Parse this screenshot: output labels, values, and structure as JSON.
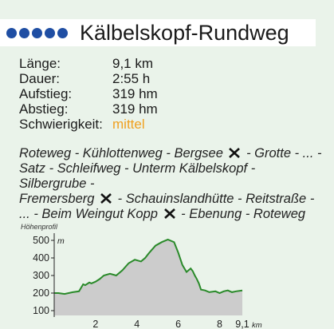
{
  "header": {
    "title": "Kälbelskopf-Rundweg",
    "dot_color": "#1f4ea3",
    "dot_count": 5
  },
  "facts": [
    {
      "label": "Länge:",
      "value": "9,1 km"
    },
    {
      "label": "Dauer:",
      "value": "2:55 h"
    },
    {
      "label": "Aufstieg:",
      "value": "319 hm"
    },
    {
      "label": "Abstieg:",
      "value": "319 hm"
    },
    {
      "label": "Schwierigkeit:",
      "value": "mittel",
      "value_color": "#f0a020"
    }
  ],
  "route": {
    "lines": [
      [
        {
          "text": "Roteweg - Kühlottenweg - Bergsee "
        },
        {
          "icon": "fork-knife-icon"
        },
        {
          "text": " - Grotte - ... -"
        }
      ],
      [
        {
          "text": "Satz - Schleifweg - Unterm Kälbelskopf - Silbergrube -"
        }
      ],
      [
        {
          "text": "Fremersberg "
        },
        {
          "icon": "fork-knife-icon"
        },
        {
          "text": " - Schauinslandhütte - Reitstraße -"
        }
      ],
      [
        {
          "text": "... - Beim Weingut Kopp "
        },
        {
          "icon": "fork-knife-icon"
        },
        {
          "text": " - Ebenung - Roteweg"
        }
      ]
    ]
  },
  "profile": {
    "label": "Höhenprofil"
  },
  "chart_data": {
    "type": "area",
    "title": "Höhenprofil",
    "ylabel": "m",
    "xlabel": "km",
    "y_ticks": [
      "100",
      "200",
      "300",
      "400",
      "500"
    ],
    "x_ticks": [
      "2",
      "4",
      "6",
      "8",
      "9,1"
    ],
    "ylim": [
      100,
      500
    ],
    "xlim": [
      0,
      9.1
    ],
    "line_color": "#2a8a2a",
    "fill_color": "#cccccc",
    "x": [
      0,
      0.2,
      0.5,
      0.9,
      1.2,
      1.4,
      1.5,
      1.7,
      1.8,
      2.0,
      2.2,
      2.4,
      2.7,
      3.0,
      3.3,
      3.6,
      3.9,
      4.2,
      4.4,
      4.6,
      4.9,
      5.2,
      5.5,
      5.8,
      6.0,
      6.2,
      6.4,
      6.5,
      6.6,
      6.7,
      6.8,
      6.9,
      7.0,
      7.1,
      7.3,
      7.5,
      7.8,
      8.0,
      8.2,
      8.4,
      8.6,
      8.8,
      9.1
    ],
    "y": [
      200,
      200,
      195,
      205,
      210,
      250,
      245,
      260,
      255,
      265,
      280,
      300,
      310,
      300,
      330,
      370,
      390,
      380,
      400,
      430,
      470,
      490,
      505,
      490,
      430,
      360,
      320,
      330,
      340,
      325,
      300,
      280,
      255,
      220,
      215,
      205,
      210,
      200,
      210,
      215,
      205,
      210,
      215
    ]
  }
}
